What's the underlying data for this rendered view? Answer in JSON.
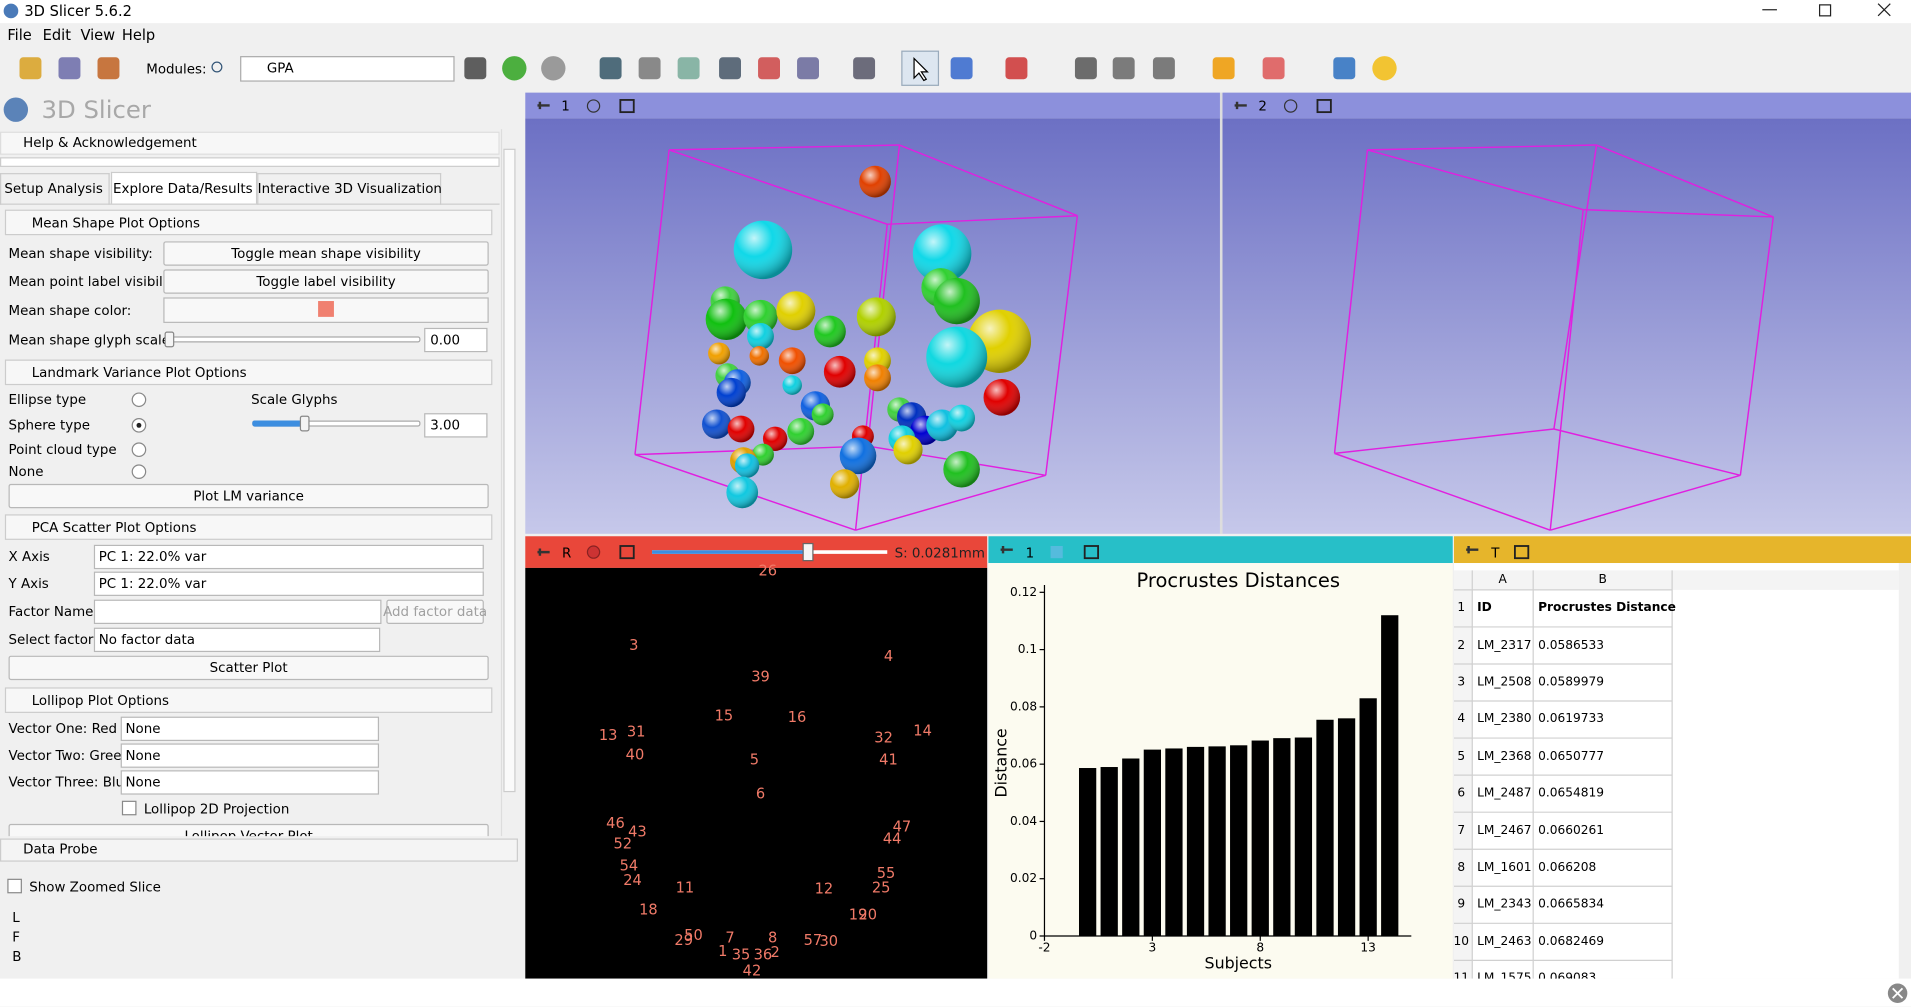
{
  "window": {
    "title": "3D Slicer 5.6.2"
  },
  "menu": [
    "File",
    "Edit",
    "View",
    "Help"
  ],
  "toolbar": {
    "modules_label": "Modules:",
    "module": "GPA"
  },
  "panel": {
    "logo": "3D Slicer",
    "help": "Help & Acknowledgement",
    "tabs": [
      "Setup Analysis",
      "Explore Data/Results",
      "Interactive 3D Visualization"
    ],
    "mean_shape": {
      "title": "Mean Shape Plot Options",
      "visibility_label": "Mean shape visibility:",
      "visibility_button": "Toggle mean shape visibility",
      "label_visibility_label": "Mean point label visibility:",
      "label_button": "Toggle label visibility",
      "color_label": "Mean shape color:",
      "glyph_label": "Mean shape glyph scale",
      "glyph_value": "0.00"
    },
    "landmark": {
      "title": "Landmark Variance Plot Options",
      "types": [
        "Ellipse type",
        "Sphere type",
        "Point cloud type",
        "None"
      ],
      "scale_label": "Scale Glyphs",
      "scale_value": "3.00",
      "button": "Plot LM variance"
    },
    "pca": {
      "title": "PCA Scatter Plot Options",
      "x_label": "X Axis",
      "x_value": "PC 1: 22.0% var",
      "y_label": "Y Axis",
      "y_value": "PC 1: 22.0% var",
      "factor_label": "Factor Name:",
      "factor_button": "Add factor data",
      "select_label": "Select factor:",
      "select_value": "No factor data",
      "button": "Scatter Plot"
    },
    "lollipop": {
      "title": "Lollipop Plot Options",
      "vectors": [
        {
          "label": "Vector One: Red",
          "value": "None"
        },
        {
          "label": "Vector Two: Green",
          "value": "None"
        },
        {
          "label": "Vector Three: Blue",
          "value": "None"
        }
      ],
      "projection": "Lollipop 2D Projection",
      "button": "Lollipop Vector Plot"
    },
    "data_probe": {
      "title": "Data Probe",
      "zoom": "Show Zoomed Slice",
      "labels": [
        "L",
        "F",
        "B"
      ]
    }
  },
  "views": {
    "view_1": "1",
    "view_2": "2",
    "slice": "R",
    "slice_offset": "S: 0.0281mm",
    "chart_view": "1",
    "table_view": "T",
    "landmarks": [
      "26",
      "3",
      "4",
      "39",
      "15",
      "16",
      "14",
      "13",
      "31",
      "32",
      "40",
      "5",
      "41",
      "6",
      "46",
      "43",
      "52",
      "47",
      "44",
      "54",
      "55",
      "24",
      "11",
      "12",
      "25",
      "18",
      "19",
      "20",
      "29",
      "50",
      "7",
      "8",
      "57",
      "30",
      "1",
      "35",
      "36",
      "2",
      "42"
    ]
  },
  "chart_data": {
    "type": "bar",
    "title": "Procrustes Distances",
    "x_label": "Subjects",
    "y_label": "Distance",
    "x": [
      0,
      1,
      2,
      3,
      4,
      5,
      6,
      7,
      8,
      9,
      10,
      11,
      12,
      13,
      14
    ],
    "values": [
      0.0586533,
      0.0589979,
      0.0619733,
      0.0650777,
      0.0654819,
      0.0660261,
      0.066208,
      0.0665834,
      0.0682469,
      0.069083,
      0.0693,
      0.0755,
      0.076,
      0.083,
      0.112
    ],
    "color": "#000000",
    "xlim": [
      -2,
      15
    ],
    "ylim": [
      0,
      0.12
    ],
    "xticks": [
      -2,
      3,
      8,
      13
    ],
    "yticks": [
      0,
      0.02,
      0.04,
      0.06,
      0.08,
      0.1,
      0.12
    ],
    "grid": false
  },
  "table": {
    "columns": [
      "A",
      "B"
    ],
    "row_numbers": [
      1,
      2,
      3,
      4,
      5,
      6,
      7,
      8,
      9,
      10,
      11
    ],
    "header": [
      "ID",
      "Procrustes Distance"
    ],
    "rows": [
      [
        "LM_2317",
        0.0586533
      ],
      [
        "LM_2508",
        0.0589979
      ],
      [
        "LM_2380",
        0.0619733
      ],
      [
        "LM_2368",
        0.0650777
      ],
      [
        "LM_2487",
        0.0654819
      ],
      [
        "LM_2467",
        0.0660261
      ],
      [
        "LM_1601",
        0.066208
      ],
      [
        "LM_2343",
        0.0665834
      ],
      [
        "LM_2463",
        0.0682469
      ],
      [
        "LM_1575",
        0.069083
      ]
    ]
  }
}
